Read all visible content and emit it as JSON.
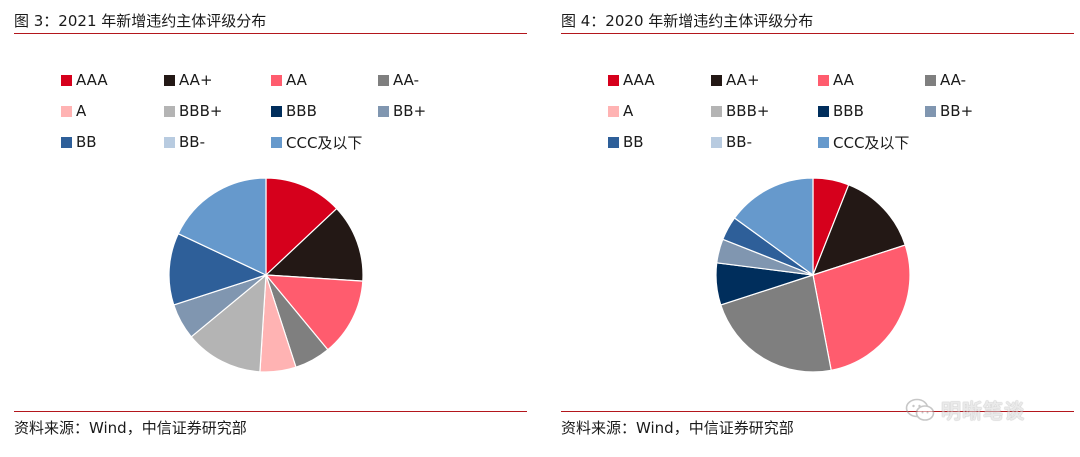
{
  "source_label": "资料来源：Wind，中信证券研究部",
  "watermark": {
    "text": "明晰笔谈",
    "icon": "wechat-icon"
  },
  "chart_data": [
    {
      "type": "pie",
      "title": "图 3：2021 年新增违约主体评级分布",
      "legend_position": "top",
      "categories": [
        "AAA",
        "AA+",
        "AA",
        "AA-",
        "A",
        "BBB+",
        "BBB",
        "BB+",
        "BB",
        "BB-",
        "CCC及以下"
      ],
      "colors": [
        "#d6001c",
        "#231815",
        "#ff5c6e",
        "#7f7f7f",
        "#ffb3b3",
        "#b4b4b4",
        "#002e5c",
        "#8096b0",
        "#2e5f99",
        "#b8cbe0",
        "#6699cc"
      ],
      "values": [
        13,
        13,
        13,
        6,
        6,
        13,
        0,
        6,
        12,
        0,
        18
      ]
    },
    {
      "type": "pie",
      "title": "图 4：2020 年新增违约主体评级分布",
      "legend_position": "top",
      "categories": [
        "AAA",
        "AA+",
        "AA",
        "AA-",
        "A",
        "BBB+",
        "BBB",
        "BB+",
        "BB",
        "BB-",
        "CCC及以下"
      ],
      "colors": [
        "#d6001c",
        "#231815",
        "#ff5c6e",
        "#7f7f7f",
        "#ffb3b3",
        "#b4b4b4",
        "#002e5c",
        "#8096b0",
        "#2e5f99",
        "#b8cbe0",
        "#6699cc"
      ],
      "values": [
        6,
        14,
        27,
        23,
        0,
        0,
        7,
        4,
        4,
        0,
        15
      ]
    }
  ]
}
